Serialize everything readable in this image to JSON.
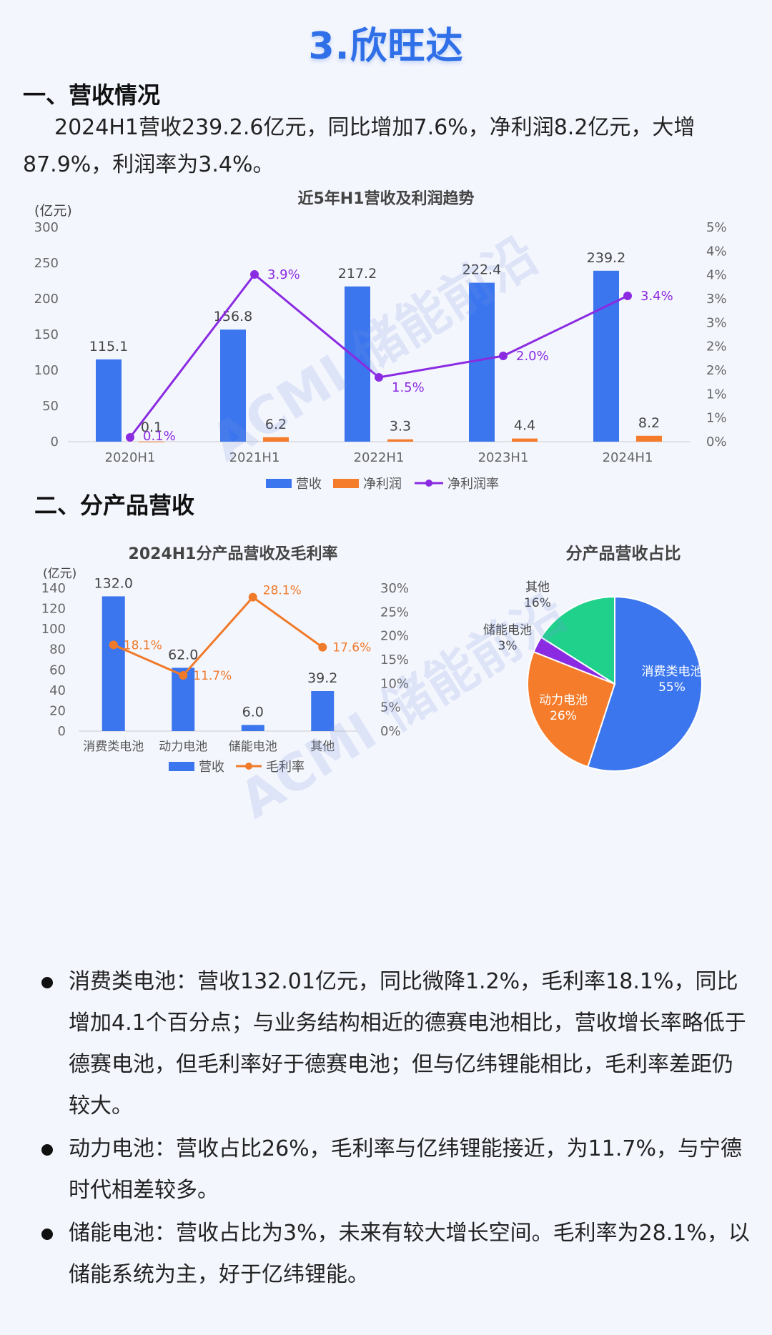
{
  "title": "3.欣旺达",
  "sections": {
    "s1_heading": "一、营收情况",
    "s1_para_line1": "2024H1营收239.2.6亿元，同比增加7.6%，净利润8.2亿元，大增",
    "s1_para_line2": "87.9%，利润率为3.4%。",
    "s2_heading": "二、分产品营收"
  },
  "watermark": "ACMI 储能前沿",
  "colors": {
    "revenue": "#3b76ee",
    "profit": "#f57c2a",
    "margin": "#8a2be2",
    "gross": "#f07a2a",
    "other": "#1fd18a"
  },
  "chart_data": [
    {
      "type": "bar",
      "title": "近5年H1营收及利润趋势",
      "ylabel": "(亿元)",
      "ylim": [
        0,
        300
      ],
      "y_ticks": [
        "0",
        "50",
        "100",
        "150",
        "200",
        "250",
        "300"
      ],
      "y2lim": [
        0,
        5
      ],
      "y2_ticks": [
        "0%",
        "1%",
        "1%",
        "2%",
        "2%",
        "3%",
        "3%",
        "4%",
        "4%",
        "5%"
      ],
      "categories": [
        "2020H1",
        "2021H1",
        "2022H1",
        "2023H1",
        "2024H1"
      ],
      "series": [
        {
          "name": "营收",
          "type": "bar",
          "values": [
            115.1,
            156.8,
            217.2,
            222.4,
            239.2
          ],
          "labels": [
            "115.1",
            "156.8",
            "217.2",
            "222.4",
            "239.2"
          ]
        },
        {
          "name": "净利润",
          "type": "bar",
          "values": [
            0.1,
            6.2,
            3.3,
            4.4,
            8.2
          ],
          "labels": [
            "0.1",
            "6.2",
            "3.3",
            "4.4",
            "8.2"
          ]
        },
        {
          "name": "净利润率",
          "type": "line",
          "axis": "right",
          "values": [
            0.1,
            3.9,
            1.5,
            2.0,
            3.4
          ],
          "labels": [
            "0.1%",
            "3.9%",
            "1.5%",
            "2.0%",
            "3.4%"
          ]
        }
      ],
      "legend": "bottom"
    },
    {
      "type": "bar",
      "title": "2024H1分产品营收及毛利率",
      "ylabel": "(亿元)",
      "ylim": [
        0,
        140
      ],
      "y_ticks": [
        "0",
        "20",
        "40",
        "60",
        "80",
        "100",
        "120",
        "140"
      ],
      "y2lim": [
        0,
        30
      ],
      "y2_ticks": [
        "0%",
        "5%",
        "10%",
        "15%",
        "20%",
        "25%",
        "30%"
      ],
      "categories": [
        "消费类电池",
        "动力电池",
        "储能电池",
        "其他"
      ],
      "series": [
        {
          "name": "营收",
          "type": "bar",
          "values": [
            132.0,
            62.0,
            6.0,
            39.2
          ],
          "labels": [
            "132.0",
            "62.0",
            "6.0",
            "39.2"
          ]
        },
        {
          "name": "毛利率",
          "type": "line",
          "axis": "right",
          "values": [
            18.1,
            11.7,
            28.1,
            17.6
          ],
          "labels": [
            "18.1%",
            "11.7%",
            "28.1%",
            "17.6%"
          ]
        }
      ],
      "legend": "bottom"
    },
    {
      "type": "pie",
      "title": "分产品营收占比",
      "slices": [
        {
          "name": "消费类电池",
          "value": 55,
          "label": "55%",
          "color": "#3b76ee"
        },
        {
          "name": "动力电池",
          "value": 26,
          "label": "26%",
          "color": "#f57c2a"
        },
        {
          "name": "储能电池",
          "value": 3,
          "label": "3%",
          "color": "#8a2be2"
        },
        {
          "name": "其他",
          "value": 16,
          "label": "16%",
          "color": "#1fd18a"
        }
      ]
    }
  ],
  "bullets": [
    {
      "text": "消费类电池：营收132.01亿元，同比微降1.2%，毛利率18.1%，同比增加4.1个百分点；与业务结构相近的德赛电池相比，营收增长率略低于德赛电池，但毛利率好于德赛电池；但与亿纬锂能相比，毛利率差距仍较大。"
    },
    {
      "text": "动力电池：营收占比26%，毛利率与亿纬锂能接近，为11.7%，与宁德时代相差较多。"
    },
    {
      "text": "储能电池：营收占比为3%，未来有较大增长空间。毛利率为28.1%，以储能系统为主，好于亿纬锂能。"
    }
  ]
}
